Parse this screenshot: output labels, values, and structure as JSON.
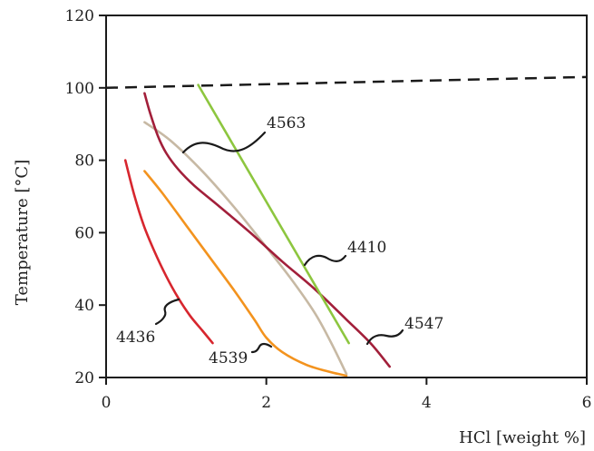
{
  "chart_data": {
    "type": "line",
    "title": "",
    "xlabel": "HCl [weight %]",
    "ylabel": "Temperature [°C]",
    "xlim": [
      0,
      6
    ],
    "ylim": [
      20,
      120
    ],
    "x_ticks": [
      "0",
      "2",
      "4",
      "6"
    ],
    "y_ticks": [
      "20",
      "40",
      "60",
      "80",
      "100",
      "120"
    ],
    "grid": false,
    "legend": "none",
    "reference_line": {
      "style": "dashed",
      "color": "#1a1a1a",
      "x": [
        0,
        6
      ],
      "y": [
        100,
        103
      ]
    },
    "series": [
      {
        "name": "4436",
        "color": "#d7262e",
        "x": [
          0.24,
          0.35,
          0.47,
          0.6,
          0.75,
          0.9,
          1.05,
          1.2,
          1.33
        ],
        "y": [
          80,
          70.5,
          62,
          55,
          48,
          42,
          37,
          33,
          29.5
        ]
      },
      {
        "name": "4539",
        "color": "#f3931e",
        "x": [
          0.48,
          0.7,
          1.0,
          1.3,
          1.6,
          1.85,
          2.0,
          2.2,
          2.5,
          2.8,
          3.0
        ],
        "y": [
          77,
          71,
          62,
          53,
          44,
          36,
          31,
          27,
          23.5,
          21.5,
          20.5
        ]
      },
      {
        "name": "4410",
        "color": "#c7b9a4",
        "x": [
          0.48,
          0.8,
          1.2,
          1.6,
          2.0,
          2.3,
          2.6,
          2.8,
          3.0
        ],
        "y": [
          90.5,
          85.5,
          77,
          67,
          56,
          47.5,
          38,
          30,
          21
        ]
      },
      {
        "name": "4547",
        "color": "#a21f3a",
        "x": [
          0.48,
          0.55,
          0.65,
          0.75,
          0.9,
          1.1,
          1.4,
          1.8,
          2.2,
          2.6,
          3.0,
          3.3,
          3.54
        ],
        "y": [
          98.5,
          93,
          86.5,
          82,
          77.5,
          73,
          67.5,
          60,
          52,
          44.5,
          36,
          29.5,
          23
        ]
      },
      {
        "name": "4563",
        "color": "#8dc63f",
        "x": [
          1.15,
          3.03
        ],
        "y": [
          100.8,
          29.5
        ]
      }
    ],
    "annotations": [
      {
        "text": "4563",
        "series": "4563"
      },
      {
        "text": "4410",
        "series": "4410"
      },
      {
        "text": "4547",
        "series": "4547"
      },
      {
        "text": "4436",
        "series": "4436"
      },
      {
        "text": "4539",
        "series": "4539"
      }
    ]
  }
}
